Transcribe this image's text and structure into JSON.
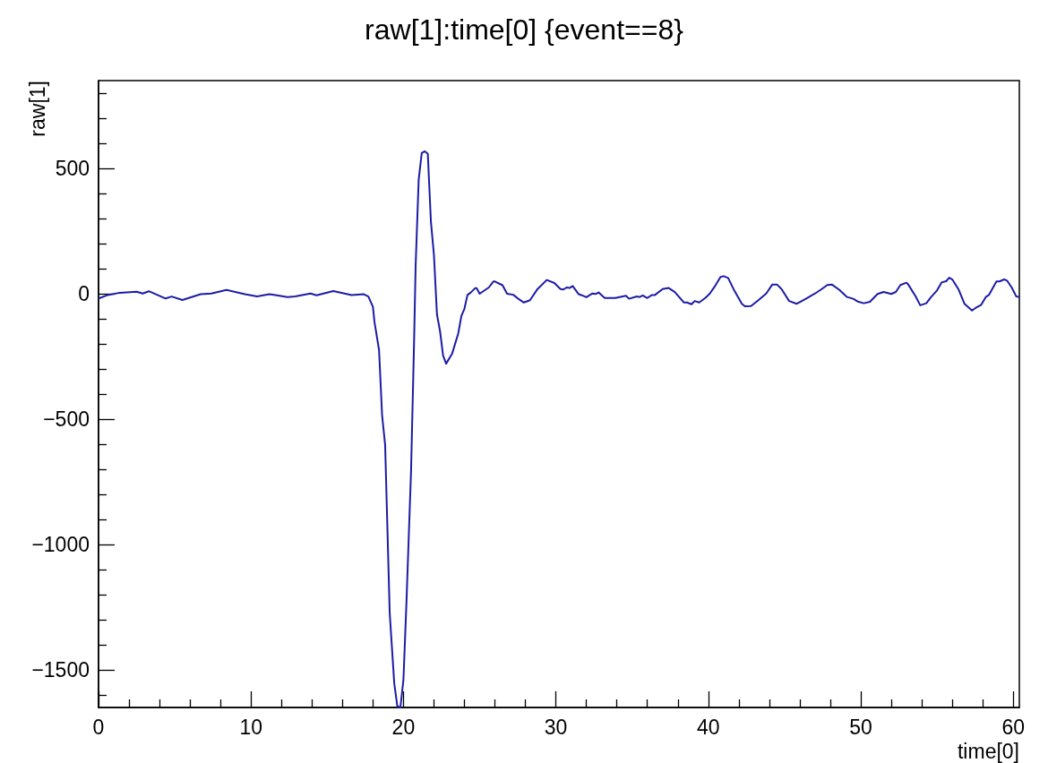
{
  "chart_data": {
    "type": "line",
    "title": "raw[1]:time[0] {event==8}",
    "xlabel": "time[0]",
    "ylabel": "raw[1]",
    "marker": "none",
    "line_style": "solid",
    "xlim": [
      0,
      60.4
    ],
    "ylim": [
      -1650,
      850
    ],
    "xticks": [
      0,
      {
        "value": 2,
        "label": null
      },
      {
        "value": 4,
        "label": null
      },
      {
        "value": 6,
        "label": null
      },
      {
        "value": 8,
        "label": null
      },
      10,
      {
        "value": 12,
        "label": null
      },
      {
        "value": 14,
        "label": null
      },
      {
        "value": 16,
        "label": null
      },
      {
        "value": 18,
        "label": null
      },
      20,
      {
        "value": 22,
        "label": null
      },
      {
        "value": 24,
        "label": null
      },
      {
        "value": 26,
        "label": null
      },
      {
        "value": 28,
        "label": null
      },
      30,
      {
        "value": 32,
        "label": null
      },
      {
        "value": 34,
        "label": null
      },
      {
        "value": 36,
        "label": null
      },
      {
        "value": 38,
        "label": null
      },
      40,
      {
        "value": 42,
        "label": null
      },
      {
        "value": 44,
        "label": null
      },
      {
        "value": 46,
        "label": null
      },
      {
        "value": 48,
        "label": null
      },
      50,
      {
        "value": 52,
        "label": null
      },
      {
        "value": 54,
        "label": null
      },
      {
        "value": 56,
        "label": null
      },
      {
        "value": 58,
        "label": null
      },
      60
    ],
    "yticks": [
      {
        "value": -1600,
        "label": null
      },
      {
        "value": -1500,
        "label": "−1500"
      },
      {
        "value": -1400,
        "label": null
      },
      {
        "value": -1300,
        "label": null
      },
      {
        "value": -1200,
        "label": null
      },
      {
        "value": -1100,
        "label": null
      },
      {
        "value": -1000,
        "label": "−1000"
      },
      {
        "value": -900,
        "label": null
      },
      {
        "value": -800,
        "label": null
      },
      {
        "value": -700,
        "label": null
      },
      {
        "value": -600,
        "label": null
      },
      {
        "value": -500,
        "label": "−500"
      },
      {
        "value": -400,
        "label": null
      },
      {
        "value": -300,
        "label": null
      },
      {
        "value": -200,
        "label": null
      },
      {
        "value": -100,
        "label": null
      },
      0,
      {
        "value": 100,
        "label": null
      },
      {
        "value": 200,
        "label": null
      },
      {
        "value": 300,
        "label": null
      },
      {
        "value": 400,
        "label": null
      },
      500,
      {
        "value": 600,
        "label": null
      },
      {
        "value": 700,
        "label": null
      },
      {
        "value": 800,
        "label": null
      }
    ],
    "series": [
      {
        "color": "#1c1ca6",
        "x": [
          0,
          0.1,
          0.6,
          1.4,
          2.5,
          2.9,
          3.3,
          4.4,
          4.8,
          5.5,
          6.7,
          7.4,
          8.4,
          9.6,
          10.4,
          11.2,
          11.6,
          12.4,
          12.9,
          13.9,
          14.3,
          15.4,
          16.6,
          17.4,
          17.7,
          18.0,
          18.1,
          18.4,
          18.6,
          18.8,
          19.1,
          19.4,
          19.6,
          19.8,
          20.0,
          20.2,
          20.5,
          20.7,
          20.8,
          21.0,
          21.2,
          21.4,
          21.6,
          21.8,
          22.0,
          22.2,
          22.4,
          22.6,
          22.8,
          23.2,
          23.6,
          23.8,
          24.0,
          24.2,
          24.4,
          24.7,
          24.8,
          25.0,
          25.6,
          25.9,
          26.0,
          26.5,
          26.8,
          27.2,
          27.6,
          27.9,
          28.3,
          28.8,
          29.4,
          29.9,
          30.3,
          30.5,
          30.7,
          30.9,
          31.1,
          31.5,
          31.7,
          32.0,
          32.4,
          32.6,
          32.8,
          33.2,
          33.9,
          34.6,
          34.8,
          35.3,
          35.5,
          35.7,
          36.0,
          36.3,
          36.5,
          37.0,
          37.4,
          37.8,
          38.4,
          38.6,
          38.9,
          39.1,
          39.4,
          39.8,
          40.1,
          40.4,
          40.8,
          41.0,
          41.3,
          41.7,
          42.2,
          42.4,
          42.8,
          43.3,
          43.8,
          44.2,
          44.5,
          44.8,
          45.3,
          45.8,
          46.4,
          47.0,
          47.4,
          47.8,
          48.1,
          48.6,
          49.1,
          49.5,
          49.8,
          50.2,
          50.6,
          51.1,
          51.5,
          52.0,
          52.3,
          52.6,
          53.0,
          53.1,
          53.6,
          53.9,
          54.3,
          54.6,
          55.0,
          55.3,
          55.6,
          55.8,
          56.0,
          56.4,
          56.8,
          57.3,
          57.5,
          57.9,
          58.2,
          58.4,
          58.9,
          59.1,
          59.4,
          59.6,
          59.9,
          60.2,
          60.4
        ],
        "values": [
          -17,
          -17,
          -5,
          4,
          8,
          1,
          10,
          -19,
          -11,
          -25,
          -2,
          1,
          15,
          -2,
          -11,
          -2,
          -5,
          -13,
          -11,
          1,
          -6,
          11,
          -5,
          -2,
          -11,
          -52,
          -112,
          -224,
          -484,
          -603,
          -1273,
          -1555,
          -1645,
          -1650,
          -1540,
          -1228,
          -707,
          -186,
          111,
          454,
          561,
          568,
          558,
          290,
          156,
          -82,
          -149,
          -246,
          -279,
          -238,
          -157,
          -89,
          -60,
          -5,
          4,
          22,
          22,
          0,
          25,
          49,
          49,
          34,
          0,
          -4,
          -23,
          -35,
          -26,
          19,
          55,
          43,
          19,
          17,
          25,
          23,
          31,
          -2,
          -6,
          -14,
          1,
          -1,
          5,
          -17,
          -17,
          -8,
          -20,
          -11,
          -13,
          -7,
          -17,
          -5,
          -5,
          19,
          23,
          7,
          -35,
          -35,
          -42,
          -29,
          -35,
          -17,
          1,
          27,
          67,
          70,
          63,
          13,
          -40,
          -50,
          -49,
          -25,
          1,
          37,
          37,
          19,
          -29,
          -40,
          -20,
          1,
          17,
          35,
          37,
          15,
          -13,
          -20,
          -31,
          -38,
          -32,
          -1,
          7,
          -1,
          7,
          35,
          44,
          38,
          -11,
          -46,
          -38,
          -14,
          13,
          45,
          50,
          64,
          57,
          19,
          -40,
          -67,
          -58,
          -44,
          -13,
          -5,
          49,
          49,
          57,
          52,
          25,
          -11,
          -13
        ]
      }
    ]
  }
}
